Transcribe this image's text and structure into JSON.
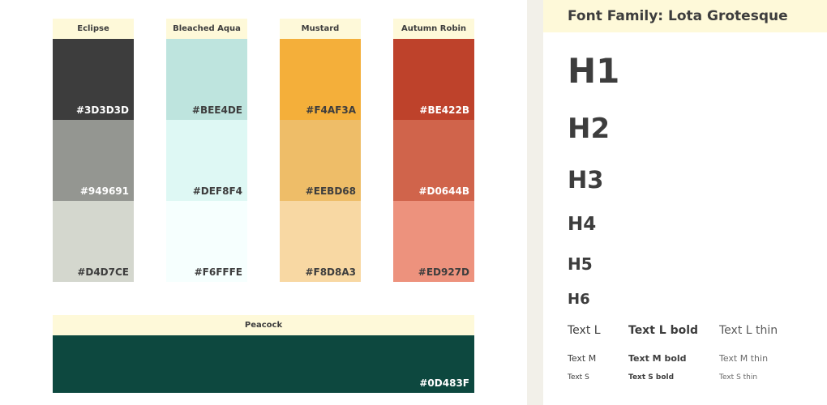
{
  "palette": {
    "columns": [
      {
        "name": "Eclipse",
        "swatches": [
          {
            "hex": "#3D3D3D",
            "color": "#3D3D3D",
            "text_color": "#ffffff"
          },
          {
            "hex": "#949691",
            "color": "#949691",
            "text_color": "#ffffff"
          },
          {
            "hex": "#D4D7CE",
            "color": "#D4D7CE",
            "text_color": "#3D3D3D"
          }
        ]
      },
      {
        "name": "Bleached Aqua",
        "swatches": [
          {
            "hex": "#BEE4DE",
            "color": "#BEE4DE",
            "text_color": "#3D3D3D"
          },
          {
            "hex": "#DEF8F4",
            "color": "#DEF8F4",
            "text_color": "#3D3D3D"
          },
          {
            "hex": "#F6FFFE",
            "color": "#F6FFFE",
            "text_color": "#3D3D3D"
          }
        ]
      },
      {
        "name": "Mustard",
        "swatches": [
          {
            "hex": "#F4AF3A",
            "color": "#F4AF3A",
            "text_color": "#3D3D3D"
          },
          {
            "hex": "#EEBD68",
            "color": "#EEBD68",
            "text_color": "#3D3D3D"
          },
          {
            "hex": "#F8D8A3",
            "color": "#F8D8A3",
            "text_color": "#3D3D3D"
          }
        ]
      },
      {
        "name": "Autumn Robin",
        "swatches": [
          {
            "hex": "#BE422B",
            "color": "#BE422B",
            "text_color": "#ffffff"
          },
          {
            "hex": "#D0644B",
            "color": "#D0644B",
            "text_color": "#ffffff"
          },
          {
            "hex": "#ED927D",
            "color": "#ED927D",
            "text_color": "#3D3D3D"
          }
        ]
      }
    ],
    "wide": {
      "name": "Peacock",
      "hex": "#0D483F",
      "color": "#0D483F",
      "text_color": "#ffffff"
    }
  },
  "typography": {
    "title": "Font Family: Lota Grotesque",
    "headings": [
      "H1",
      "H2",
      "H3",
      "H4",
      "H5",
      "H6"
    ],
    "text_rows": [
      [
        "Text L",
        "Text L bold",
        "Text L thin"
      ],
      [
        "Text M",
        "Text M bold",
        "Text M thin"
      ],
      [
        "Text S",
        "Text S bold",
        "Text S thin"
      ]
    ]
  },
  "colors": {
    "header_bg": "#FEF9D9",
    "divider": "#F2F0E9",
    "text": "#3D3D3D"
  }
}
